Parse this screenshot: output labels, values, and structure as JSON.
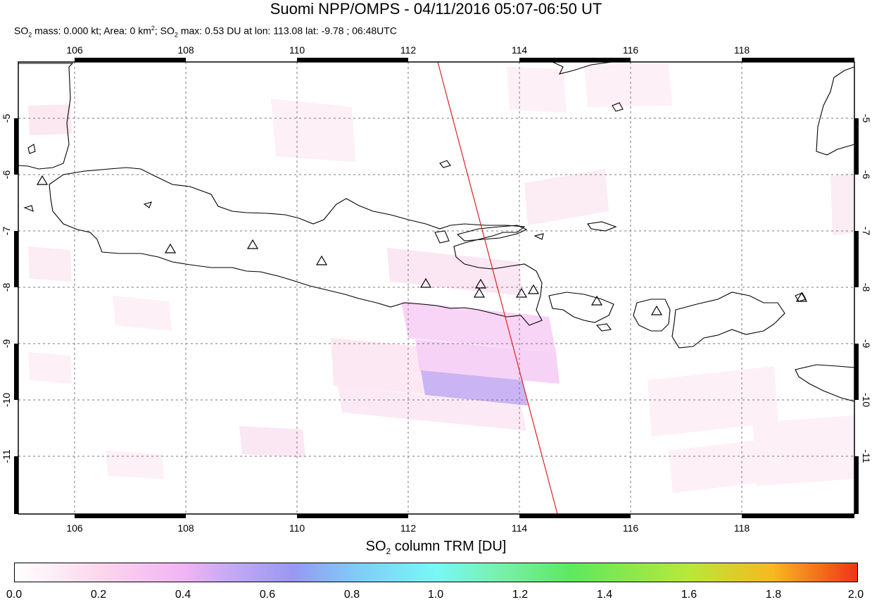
{
  "title": "Suomi NPP/OMPS - 04/11/2016 05:07-06:50 UT",
  "subtitle": {
    "p1": "SO",
    "s1": "2",
    "p2": " mass: 0.000 kt; Area: 0 km",
    "s2": "2",
    "p3": "; SO",
    "s3": "2",
    "p4": " max: 0.53 DU at lon: 113.08 lat: -9.78 ; 06:48UTC"
  },
  "map": {
    "lon_ticks": [
      "106",
      "108",
      "110",
      "112",
      "114",
      "116",
      "118"
    ],
    "lat_ticks": [
      "-5",
      "-6",
      "-7",
      "-8",
      "-9",
      "-10",
      "-11"
    ],
    "lon_range": [
      105,
      120
    ],
    "lat_range": [
      -12,
      -4
    ],
    "grid": true,
    "land_outline_color": "#000000",
    "orbit_track_color": "#dd2222",
    "volcano_marker": "triangle"
  },
  "colorbar": {
    "title_prefix": "SO",
    "title_sub": "2",
    "title_suffix": " column TRM [DU]",
    "labels": [
      "0.0",
      "0.2",
      "0.4",
      "0.6",
      "0.8",
      "1.0",
      "1.2",
      "1.4",
      "1.6",
      "1.8",
      "2.0"
    ],
    "range": [
      0.0,
      2.0
    ]
  }
}
